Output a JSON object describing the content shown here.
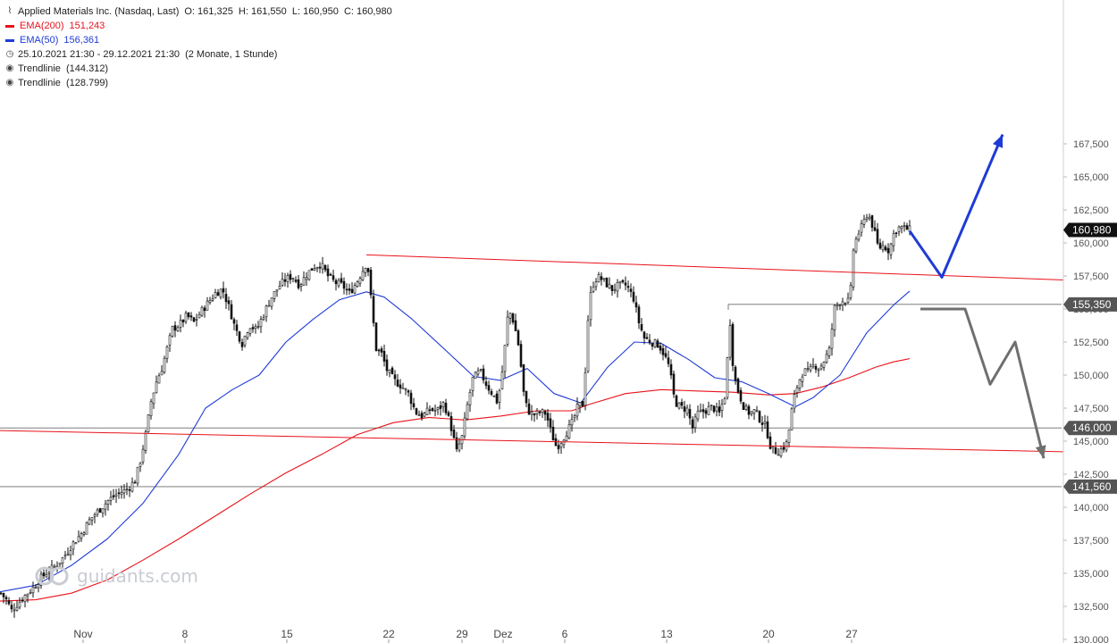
{
  "header": {
    "title": "Applied Materials Inc. (Nasdaq, Last)",
    "ohlc": "O: 161,325  H: 161,550  L: 160,950  C: 160,980",
    "ema200": {
      "label": "EMA(200)",
      "value": "151,243",
      "color": "#e8121a"
    },
    "ema50": {
      "label": "EMA(50)",
      "value": "156,361",
      "color": "#1f3bd6"
    },
    "period": "25.10.2021 21:30 - 29.12.2021 21:30",
    "period_note": "(2 Monate, 1 Stunde)",
    "trend1": "Trendlinie  (144.312)",
    "trend2": "Trendlinie  (128.799)"
  },
  "watermark": {
    "text": "guidants.com",
    "icon": "guidants-logo-icon"
  },
  "chart_data": {
    "type": "candlestick",
    "instrument": "Applied Materials Inc. (Nasdaq, Last)",
    "ylim": [
      130,
      168.5
    ],
    "y_ticks": [
      "130,000",
      "132,500",
      "135,000",
      "137,500",
      "140,000",
      "142,500",
      "145,000",
      "147,500",
      "150,000",
      "152,500",
      "155,000",
      "157,500",
      "160,000",
      "162,500",
      "165,000",
      "167,500"
    ],
    "x_ticks": [
      "Nov",
      "8",
      "15",
      "22",
      "29",
      "Dez",
      "6",
      "13",
      "20",
      "27"
    ],
    "price_path": [
      [
        0,
        133.5
      ],
      [
        6,
        133
      ],
      [
        12,
        132.2
      ],
      [
        20,
        132.8
      ],
      [
        28,
        133.4
      ],
      [
        36,
        133.9
      ],
      [
        44,
        134.6
      ],
      [
        52,
        135.1
      ],
      [
        60,
        135.5
      ],
      [
        70,
        136.2
      ],
      [
        80,
        137.2
      ],
      [
        90,
        138
      ],
      [
        100,
        139.1
      ],
      [
        110,
        139.8
      ],
      [
        120,
        140.5
      ],
      [
        130,
        141
      ],
      [
        140,
        141.3
      ],
      [
        150,
        142
      ],
      [
        156,
        143.5
      ],
      [
        162,
        145.5
      ],
      [
        168,
        148
      ],
      [
        174,
        149.5
      ],
      [
        180,
        150.5
      ],
      [
        186,
        152
      ],
      [
        192,
        153.5
      ],
      [
        200,
        153.8
      ],
      [
        208,
        154.5
      ],
      [
        216,
        154
      ],
      [
        224,
        154.8
      ],
      [
        232,
        155.5
      ],
      [
        240,
        156.2
      ],
      [
        248,
        156.5
      ],
      [
        256,
        155
      ],
      [
        262,
        153.6
      ],
      [
        270,
        152.4
      ],
      [
        278,
        153.8
      ],
      [
        286,
        153.4
      ],
      [
        294,
        154.6
      ],
      [
        302,
        155.8
      ],
      [
        310,
        156.6
      ],
      [
        318,
        157.2
      ],
      [
        326,
        157.5
      ],
      [
        334,
        156.8
      ],
      [
        342,
        157.6
      ],
      [
        350,
        158.2
      ],
      [
        358,
        158.4
      ],
      [
        366,
        157.5
      ],
      [
        374,
        157
      ],
      [
        382,
        156.8
      ],
      [
        390,
        156.2
      ],
      [
        398,
        157
      ],
      [
        404,
        157.8
      ],
      [
        410,
        158.6
      ],
      [
        416,
        154.5
      ],
      [
        420,
        152
      ],
      [
        426,
        151.6
      ],
      [
        432,
        150.4
      ],
      [
        440,
        149.6
      ],
      [
        448,
        149.2
      ],
      [
        456,
        148.6
      ],
      [
        464,
        147.2
      ],
      [
        472,
        146.9
      ],
      [
        480,
        147.4
      ],
      [
        488,
        147.3
      ],
      [
        496,
        147.9
      ],
      [
        504,
        146
      ],
      [
        510,
        144.2
      ],
      [
        516,
        145.3
      ],
      [
        522,
        147.7
      ],
      [
        528,
        149.7
      ],
      [
        536,
        150.3
      ],
      [
        544,
        149.2
      ],
      [
        550,
        148.6
      ],
      [
        556,
        147.9
      ],
      [
        562,
        150.7
      ],
      [
        568,
        155
      ],
      [
        574,
        154
      ],
      [
        580,
        152
      ],
      [
        586,
        148
      ],
      [
        592,
        147.1
      ],
      [
        598,
        147
      ],
      [
        604,
        147.2
      ],
      [
        610,
        147.1
      ],
      [
        616,
        145.6
      ],
      [
        622,
        144.5
      ],
      [
        628,
        145.1
      ],
      [
        634,
        145.8
      ],
      [
        640,
        146.5
      ],
      [
        646,
        147.7
      ],
      [
        652,
        147.8
      ],
      [
        658,
        155.5
      ],
      [
        664,
        157.2
      ],
      [
        670,
        157.4
      ],
      [
        676,
        157
      ],
      [
        684,
        156.5
      ],
      [
        692,
        156.8
      ],
      [
        700,
        156.8
      ],
      [
        708,
        155.8
      ],
      [
        714,
        154
      ],
      [
        720,
        152.8
      ],
      [
        728,
        152.5
      ],
      [
        736,
        152.3
      ],
      [
        742,
        151.6
      ],
      [
        748,
        150.6
      ],
      [
        754,
        148
      ],
      [
        760,
        147.6
      ],
      [
        768,
        147.4
      ],
      [
        774,
        146
      ],
      [
        780,
        147.1
      ],
      [
        788,
        147.3
      ],
      [
        796,
        147.6
      ],
      [
        804,
        147.1
      ],
      [
        810,
        148.4
      ],
      [
        816,
        154
      ],
      [
        820,
        150
      ],
      [
        826,
        148.6
      ],
      [
        832,
        147.5
      ],
      [
        838,
        147.1
      ],
      [
        844,
        147.3
      ],
      [
        850,
        146.6
      ],
      [
        856,
        146.1
      ],
      [
        862,
        144.4
      ],
      [
        868,
        144.2
      ],
      [
        874,
        144.4
      ],
      [
        880,
        144.9
      ],
      [
        886,
        147.8
      ],
      [
        892,
        149.4
      ],
      [
        898,
        150.3
      ],
      [
        904,
        150.2
      ],
      [
        910,
        150.8
      ],
      [
        916,
        150.5
      ],
      [
        922,
        151.2
      ],
      [
        928,
        152
      ],
      [
        932,
        155
      ],
      [
        938,
        155.5
      ],
      [
        944,
        155.7
      ],
      [
        950,
        155.5
      ],
      [
        954,
        159.5
      ],
      [
        958,
        160.5
      ],
      [
        964,
        161.3
      ],
      [
        970,
        162.3
      ],
      [
        976,
        161.2
      ],
      [
        982,
        159.6
      ],
      [
        988,
        159.8
      ],
      [
        994,
        159.4
      ],
      [
        1000,
        160.9
      ],
      [
        1006,
        161.2
      ],
      [
        1012,
        161.1
      ],
      [
        1018,
        160.98
      ]
    ],
    "price_step_px": 3,
    "ema200_path": [
      [
        0,
        132.9
      ],
      [
        40,
        133
      ],
      [
        80,
        133.5
      ],
      [
        120,
        134.5
      ],
      [
        160,
        136
      ],
      [
        200,
        137.6
      ],
      [
        240,
        139.3
      ],
      [
        280,
        141
      ],
      [
        320,
        142.6
      ],
      [
        360,
        144
      ],
      [
        400,
        145.5
      ],
      [
        440,
        146.4
      ],
      [
        480,
        146.8
      ],
      [
        520,
        146.6
      ],
      [
        560,
        146.9
      ],
      [
        600,
        147.3
      ],
      [
        640,
        147.3
      ],
      [
        660,
        147.8
      ],
      [
        700,
        148.6
      ],
      [
        740,
        148.9
      ],
      [
        780,
        148.8
      ],
      [
        820,
        148.7
      ],
      [
        860,
        148.5
      ],
      [
        890,
        148.6
      ],
      [
        920,
        149.1
      ],
      [
        950,
        149.8
      ],
      [
        980,
        150.6
      ],
      [
        1000,
        151
      ],
      [
        1018,
        151.24
      ]
    ],
    "ema50_path": [
      [
        0,
        133.6
      ],
      [
        40,
        134.1
      ],
      [
        80,
        135.6
      ],
      [
        120,
        137.6
      ],
      [
        160,
        140.3
      ],
      [
        200,
        144
      ],
      [
        230,
        147.5
      ],
      [
        260,
        148.9
      ],
      [
        290,
        150
      ],
      [
        320,
        152.5
      ],
      [
        350,
        154.2
      ],
      [
        380,
        155.7
      ],
      [
        410,
        156.3
      ],
      [
        430,
        155.9
      ],
      [
        460,
        154.3
      ],
      [
        500,
        151.8
      ],
      [
        530,
        149.9
      ],
      [
        560,
        149.6
      ],
      [
        590,
        150.5
      ],
      [
        620,
        148.6
      ],
      [
        650,
        147.9
      ],
      [
        680,
        150.6
      ],
      [
        710,
        152.5
      ],
      [
        740,
        152.4
      ],
      [
        770,
        151.2
      ],
      [
        800,
        149.8
      ],
      [
        830,
        149.5
      ],
      [
        860,
        148.6
      ],
      [
        890,
        147.6
      ],
      [
        910,
        148.3
      ],
      [
        940,
        150
      ],
      [
        970,
        153.2
      ],
      [
        1000,
        155.3
      ],
      [
        1018,
        156.36
      ]
    ],
    "horizontal_levels": [
      "141,560",
      "146,000",
      "155,350"
    ],
    "last_price": "160,980",
    "trendlines": [
      {
        "name": "Trendlinie",
        "value": "144.312",
        "from": [
          0,
          145.8
        ],
        "to": [
          1190,
          144.2
        ]
      },
      {
        "name": "Trendlinie",
        "value": "128.799",
        "from": [
          410,
          159.1
        ],
        "to": [
          1190,
          157.2
        ]
      }
    ],
    "scenario_arrows": [
      {
        "color": "#1f3bd6",
        "points": [
          [
            1018,
            160.9
          ],
          [
            1054,
            157.4
          ],
          [
            1122,
            168.2
          ]
        ]
      },
      {
        "color": "#6f6f6f",
        "points": [
          [
            1030,
            155
          ],
          [
            1080,
            155
          ],
          [
            1108,
            149.3
          ],
          [
            1136,
            152.5
          ],
          [
            1168,
            143.7
          ]
        ]
      }
    ]
  }
}
